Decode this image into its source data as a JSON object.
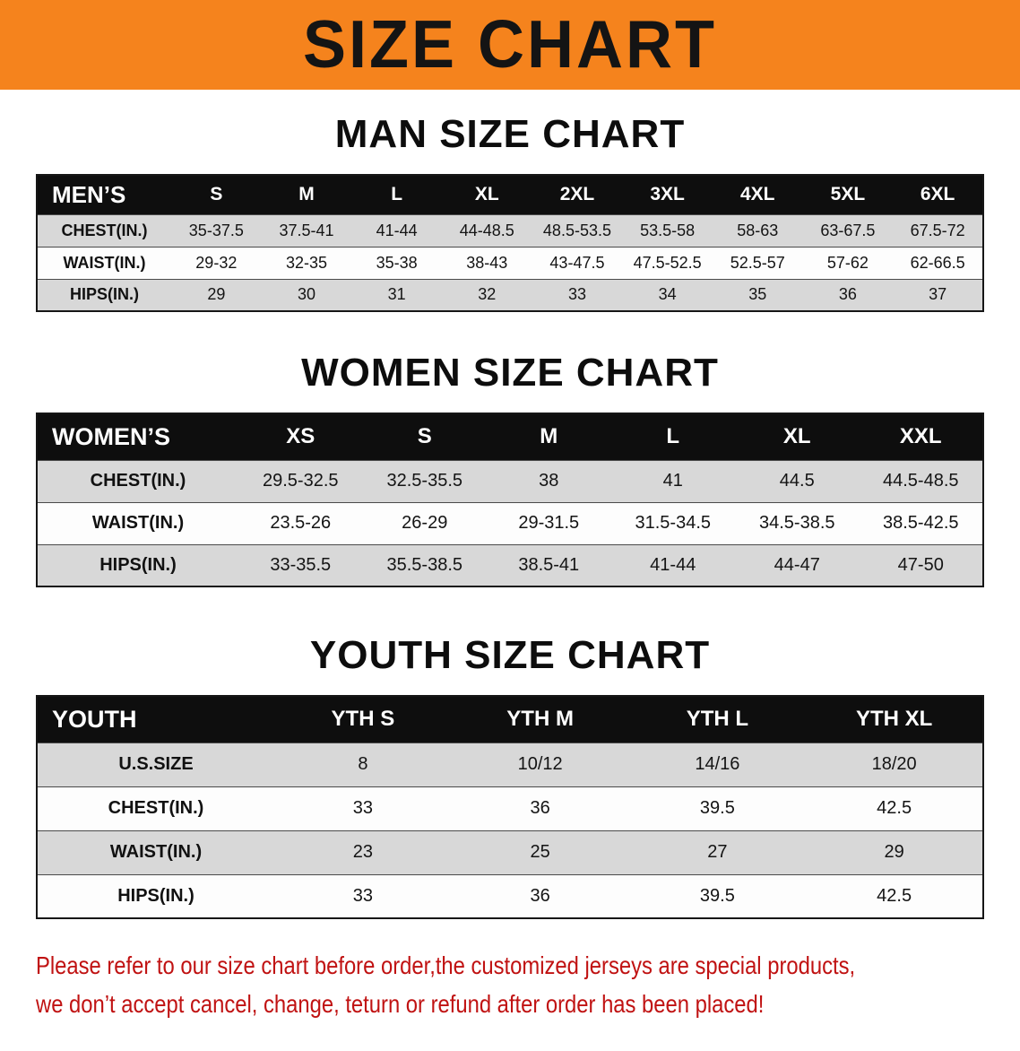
{
  "banner": {
    "title": "SIZE CHART"
  },
  "colors": {
    "banner_bg": "#F5831D",
    "table_header_bg": "#0E0E0E",
    "row_alt_bg": "#D8D8D8",
    "disclaimer_red": "#C01212"
  },
  "sections": [
    {
      "heading": "MAN SIZE CHART",
      "header": [
        "MEN’S",
        "S",
        "M",
        "L",
        "XL",
        "2XL",
        "3XL",
        "4XL",
        "5XL",
        "6XL"
      ],
      "rows": [
        {
          "label": "CHEST(IN.)",
          "values": [
            "35-37.5",
            "37.5-41",
            "41-44",
            "44-48.5",
            "48.5-53.5",
            "53.5-58",
            "58-63",
            "63-67.5",
            "67.5-72"
          ]
        },
        {
          "label": "WAIST(IN.)",
          "values": [
            "29-32",
            "32-35",
            "35-38",
            "38-43",
            "43-47.5",
            "47.5-52.5",
            "52.5-57",
            "57-62",
            "62-66.5"
          ]
        },
        {
          "label": "HIPS(IN.)",
          "values": [
            "29",
            "30",
            "31",
            "32",
            "33",
            "34",
            "35",
            "36",
            "37"
          ]
        }
      ]
    },
    {
      "heading": "WOMEN SIZE CHART",
      "header": [
        "WOMEN’S",
        "XS",
        "S",
        "M",
        "L",
        "XL",
        "XXL"
      ],
      "rows": [
        {
          "label": "CHEST(IN.)",
          "values": [
            "29.5-32.5",
            "32.5-35.5",
            "38",
            "41",
            "44.5",
            "44.5-48.5"
          ]
        },
        {
          "label": "WAIST(IN.)",
          "values": [
            "23.5-26",
            "26-29",
            "29-31.5",
            "31.5-34.5",
            "34.5-38.5",
            "38.5-42.5"
          ]
        },
        {
          "label": "HIPS(IN.)",
          "values": [
            "33-35.5",
            "35.5-38.5",
            "38.5-41",
            "41-44",
            "44-47",
            "47-50"
          ]
        }
      ]
    },
    {
      "heading": "YOUTH SIZE CHART",
      "header": [
        "YOUTH",
        "YTH S",
        "YTH M",
        "YTH L",
        "YTH XL"
      ],
      "rows": [
        {
          "label": "U.S.SIZE",
          "values": [
            "8",
            "10/12",
            "14/16",
            "18/20"
          ]
        },
        {
          "label": "CHEST(IN.)",
          "values": [
            "33",
            "36",
            "39.5",
            "42.5"
          ]
        },
        {
          "label": "WAIST(IN.)",
          "values": [
            "23",
            "25",
            "27",
            "29"
          ]
        },
        {
          "label": "HIPS(IN.)",
          "values": [
            "33",
            "36",
            "39.5",
            "42.5"
          ]
        }
      ]
    }
  ],
  "disclaimer": {
    "line1": "Please refer to our size chart before order,the customized jerseys are special products,",
    "line2": "we don’t accept cancel, change, teturn or refund after order has been placed!"
  }
}
